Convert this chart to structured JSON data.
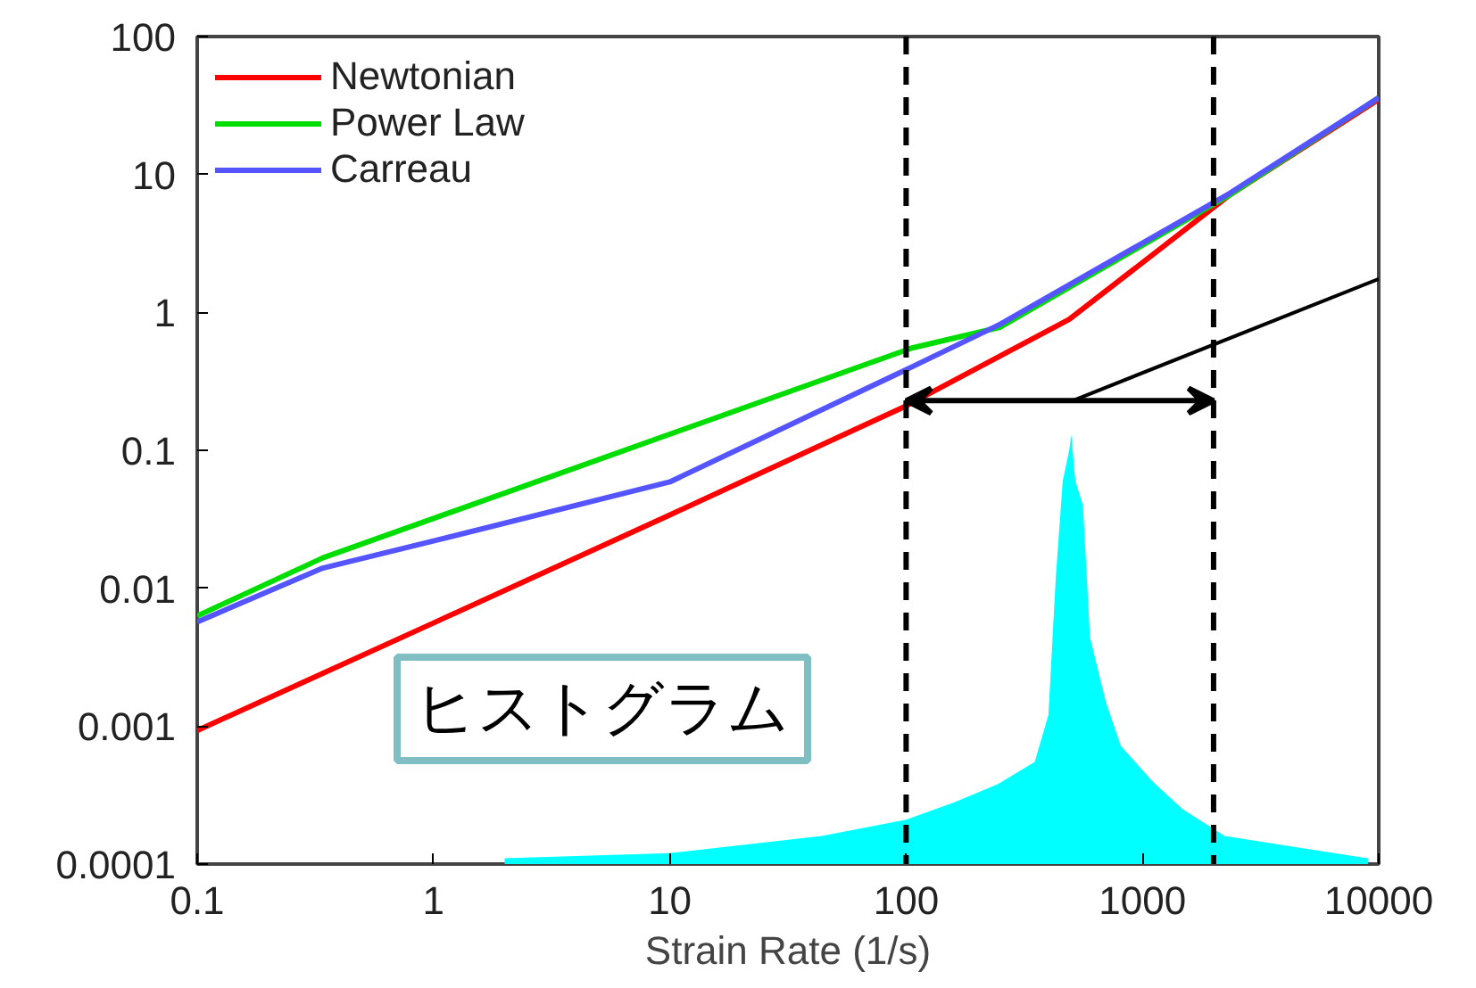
{
  "chart_data": {
    "type": "line",
    "xlabel": "Strain Rate (1/s)",
    "log": "xy",
    "xlim": [
      0.1,
      10000
    ],
    "ylim": [
      0.0001,
      100
    ],
    "xticks": [
      0.1,
      1,
      10,
      100,
      1000,
      10000
    ],
    "yticks": [
      0.0001,
      0.001,
      0.01,
      0.1,
      1,
      10,
      100
    ],
    "grid": false,
    "legend": "top left",
    "line_style": "solid",
    "marker": "none",
    "series": [
      {
        "name": "Newtonian",
        "color": "#ff0000",
        "x": [
          0.1,
          1,
          10,
          100,
          490,
          2340,
          10000
        ],
        "values": [
          0.00093,
          0.0056,
          0.034,
          0.21,
          0.89,
          7.1,
          35
        ]
      },
      {
        "name": "Power Law",
        "color": "#00dd00",
        "x": [
          0.1,
          0.34,
          105,
          250,
          2340,
          10000
        ],
        "values": [
          0.0063,
          0.0166,
          0.55,
          0.78,
          7.1,
          36
        ]
      },
      {
        "name": "Carreau",
        "color": "#5555ff",
        "x": [
          0.1,
          0.34,
          1,
          10,
          105,
          250,
          2340,
          10000
        ],
        "values": [
          0.0057,
          0.014,
          0.022,
          0.059,
          0.4,
          0.82,
          7.3,
          36
        ]
      },
      {
        "color": "#000000",
        "x": [
          510,
          10000
        ],
        "values": [
          0.23,
          1.75
        ]
      },
      {
        "type": "area",
        "color": "#00ffff",
        "x": [
          2,
          10,
          44,
          100,
          160,
          245,
          350,
          400,
          430,
          460,
          490,
          500,
          520,
          560,
          600,
          700,
          810,
          1100,
          1480,
          2230,
          4840,
          9000
        ],
        "values": [
          0.00011,
          0.00012,
          0.00016,
          0.00021,
          0.00028,
          0.00038,
          0.00055,
          0.0012,
          0.012,
          0.06,
          0.1,
          0.13,
          0.06,
          0.04,
          0.0044,
          0.0015,
          0.00072,
          0.0004,
          0.00025,
          0.00016,
          0.00013,
          0.00011
        ]
      }
    ],
    "ref_lines": [
      {
        "axis": "x",
        "value": 100,
        "label": null,
        "color": "#000000",
        "line_style": "dashed"
      },
      {
        "axis": "x",
        "value": 2000,
        "label": null,
        "color": "#000000",
        "line_style": "dashed"
      }
    ],
    "annotations": [
      "ヒストグラム"
    ]
  }
}
